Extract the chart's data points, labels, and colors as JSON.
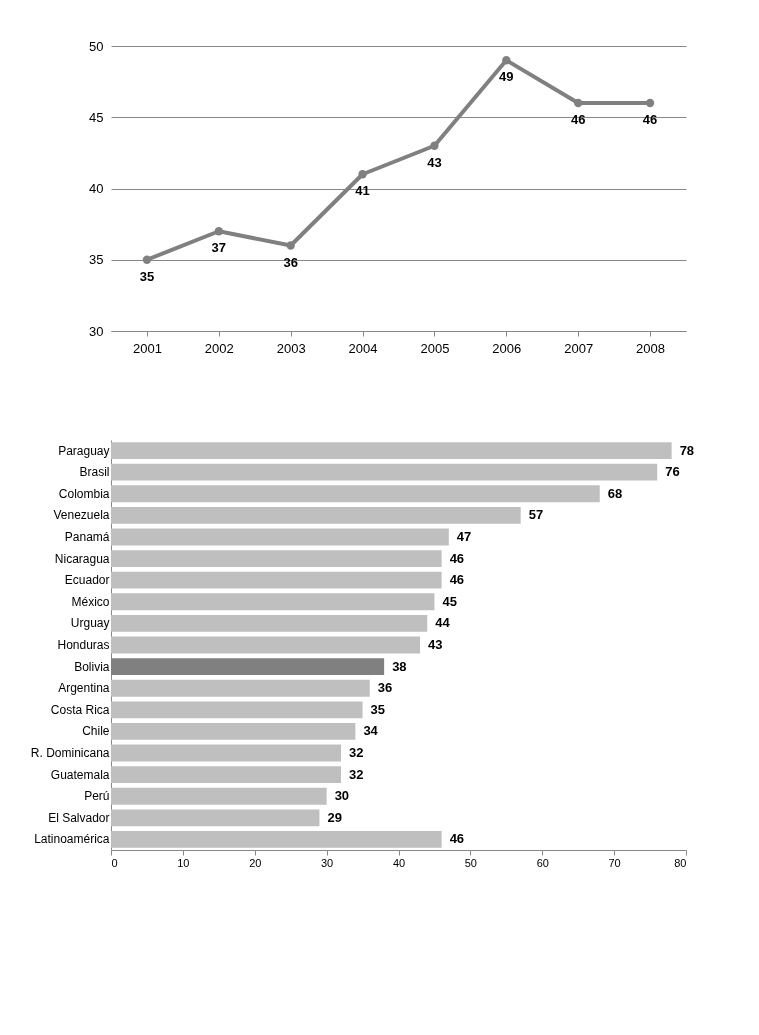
{
  "chart_data": [
    {
      "type": "line",
      "categories": [
        "2001",
        "2002",
        "2003",
        "2004",
        "2005",
        "2006",
        "2007",
        "2008"
      ],
      "series": [
        {
          "color": "#808080",
          "values": [
            35,
            37,
            36,
            41,
            43,
            49,
            46,
            46
          ]
        }
      ],
      "ylim": [
        30,
        50
      ],
      "yticks": [
        30,
        35,
        40,
        45,
        50
      ],
      "grid": "y",
      "marker": "circle",
      "line_style": "solid",
      "data_labels": true
    },
    {
      "type": "bar",
      "orientation": "horizontal",
      "categories": [
        "Paraguay",
        "Brasil",
        "Colombia",
        "Venezuela",
        "Panamá",
        "Nicaragua",
        "Ecuador",
        "México",
        "Urguay",
        "Honduras",
        "Bolivia",
        "Argentina",
        "Costa Rica",
        "Chile",
        "R. Dominicana",
        "Guatemala",
        "Perú",
        "El Salvador",
        "Latinoamérica"
      ],
      "values": [
        78,
        76,
        68,
        57,
        47,
        46,
        46,
        45,
        44,
        43,
        38,
        36,
        35,
        34,
        32,
        32,
        30,
        29,
        46
      ],
      "colors": [
        "#bfbfbf",
        "#bfbfbf",
        "#bfbfbf",
        "#bfbfbf",
        "#bfbfbf",
        "#bfbfbf",
        "#bfbfbf",
        "#bfbfbf",
        "#bfbfbf",
        "#bfbfbf",
        "#808080",
        "#bfbfbf",
        "#bfbfbf",
        "#bfbfbf",
        "#bfbfbf",
        "#bfbfbf",
        "#bfbfbf",
        "#bfbfbf",
        "#bfbfbf"
      ],
      "xlim": [
        0,
        80
      ],
      "xticks": [
        0,
        10,
        20,
        30,
        40,
        50,
        60,
        70,
        80
      ],
      "grid": false,
      "data_labels": true
    }
  ]
}
